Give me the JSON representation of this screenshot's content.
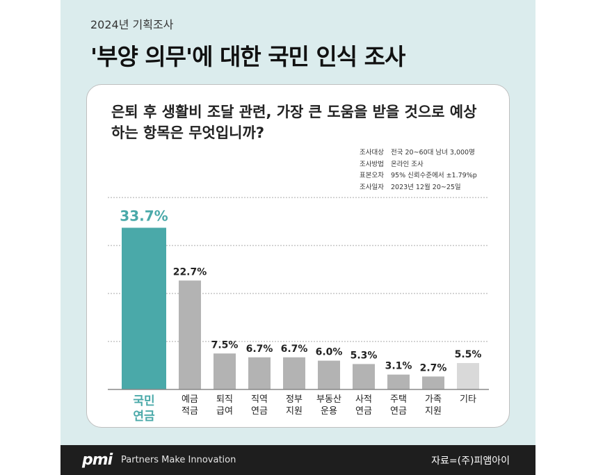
{
  "header": {
    "subtitle": "2024년 기획조사",
    "title": "'부양 의무'에 대한 국민 인식 조사"
  },
  "question": "은퇴 후 생활비 조달 관련, 가장 큰 도움을 받을 것으로 예상하는 항목은 무엇입니까?",
  "survey_info": [
    {
      "key": "조사대상",
      "value": "전국 20~60대 남녀 3,000명"
    },
    {
      "key": "조사방법",
      "value": "온라인 조사"
    },
    {
      "key": "표본오차",
      "value": "95% 신뢰수준에서 ±1.79%p"
    },
    {
      "key": "조사일자",
      "value": "2023년 12월 20~25일"
    }
  ],
  "chart_data": {
    "type": "bar",
    "categories": [
      [
        "국민",
        "연금"
      ],
      [
        "예금",
        "적금"
      ],
      [
        "퇴직",
        "급여"
      ],
      [
        "직역",
        "연금"
      ],
      [
        "정부",
        "지원"
      ],
      [
        "부동산",
        "운용"
      ],
      [
        "사적",
        "연금"
      ],
      [
        "주택",
        "연금"
      ],
      [
        "가족",
        "지원"
      ],
      [
        "기타"
      ]
    ],
    "values": [
      33.7,
      22.7,
      7.5,
      6.7,
      6.7,
      6.0,
      5.3,
      3.1,
      2.7,
      5.5
    ],
    "value_labels": [
      "33.7%",
      "22.7%",
      "7.5%",
      "6.7%",
      "6.7%",
      "6.0%",
      "5.3%",
      "3.1%",
      "2.7%",
      "5.5%"
    ],
    "ylim": [
      0,
      40
    ],
    "grid": true,
    "colors": {
      "highlight": "#4aa9a9",
      "default": "#b3b3b3",
      "other": "#d9d9d9",
      "axis": "#888888",
      "grid": "#aaaaaa"
    }
  },
  "footer": {
    "logo": "pmi",
    "slogan": "Partners Make Innovation",
    "source": "자료=(주)피앰아이"
  }
}
